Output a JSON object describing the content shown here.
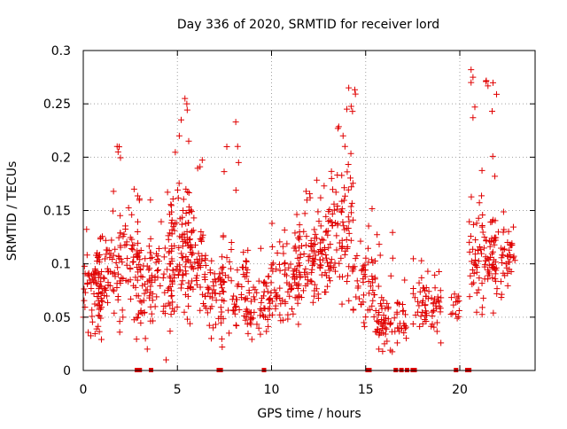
{
  "chart_data": {
    "type": "scatter",
    "title": "Day 336 of 2020, SRMTID for receiver lord",
    "xlabel": "GPS time / hours",
    "ylabel": "SRMTID / TECUs",
    "xlim": [
      0,
      24
    ],
    "ylim": [
      0,
      0.3
    ],
    "x_ticks": [
      0,
      5,
      10,
      15,
      20
    ],
    "x_tick_labels": [
      "0",
      "5",
      "10",
      "15",
      "20"
    ],
    "y_ticks": [
      0,
      0.05,
      0.1,
      0.15,
      0.2,
      0.25,
      0.3
    ],
    "y_tick_labels": [
      "0",
      "0.05",
      "0.1",
      "0.15",
      "0.2",
      "0.25",
      "0.3"
    ],
    "grid": true,
    "marker": "plus",
    "color": "#e00000",
    "clusters": [
      {
        "x0": 0.0,
        "x1": 1.0,
        "base": 0.075,
        "spread": 0.03,
        "n": 60,
        "max": 0.15
      },
      {
        "x0": 0.5,
        "x1": 2.0,
        "base": 0.09,
        "spread": 0.035,
        "n": 70,
        "max": 0.18
      },
      {
        "x0": 1.8,
        "x1": 3.0,
        "base": 0.1,
        "spread": 0.04,
        "n": 60,
        "max": 0.21
      },
      {
        "x0": 2.8,
        "x1": 3.7,
        "base": 0.075,
        "spread": 0.035,
        "n": 45,
        "max": 0.16
      },
      {
        "x0": 3.5,
        "x1": 4.8,
        "base": 0.085,
        "spread": 0.035,
        "n": 60,
        "max": 0.17
      },
      {
        "x0": 4.5,
        "x1": 5.8,
        "base": 0.11,
        "spread": 0.05,
        "n": 90,
        "max": 0.255
      },
      {
        "x0": 5.5,
        "x1": 6.5,
        "base": 0.1,
        "spread": 0.04,
        "n": 55,
        "max": 0.2
      },
      {
        "x0": 6.3,
        "x1": 7.5,
        "base": 0.075,
        "spread": 0.03,
        "n": 50,
        "max": 0.14
      },
      {
        "x0": 7.3,
        "x1": 8.8,
        "base": 0.075,
        "spread": 0.035,
        "n": 60,
        "max": 0.23
      },
      {
        "x0": 8.5,
        "x1": 10.0,
        "base": 0.065,
        "spread": 0.03,
        "n": 60,
        "max": 0.12
      },
      {
        "x0": 9.8,
        "x1": 11.5,
        "base": 0.075,
        "spread": 0.03,
        "n": 75,
        "max": 0.14
      },
      {
        "x0": 11.2,
        "x1": 12.3,
        "base": 0.1,
        "spread": 0.035,
        "n": 55,
        "max": 0.17
      },
      {
        "x0": 12.0,
        "x1": 13.2,
        "base": 0.11,
        "spread": 0.04,
        "n": 65,
        "max": 0.19
      },
      {
        "x0": 13.0,
        "x1": 14.5,
        "base": 0.13,
        "spread": 0.055,
        "n": 85,
        "max": 0.265
      },
      {
        "x0": 14.3,
        "x1": 15.8,
        "base": 0.085,
        "spread": 0.035,
        "n": 55,
        "max": 0.17
      },
      {
        "x0": 15.5,
        "x1": 17.2,
        "base": 0.045,
        "spread": 0.02,
        "n": 75,
        "max": 0.13
      },
      {
        "x0": 17.5,
        "x1": 19.0,
        "base": 0.06,
        "spread": 0.025,
        "n": 65,
        "max": 0.11
      },
      {
        "x0": 19.5,
        "x1": 20.0,
        "base": 0.06,
        "spread": 0.015,
        "n": 14,
        "max": 0.08
      },
      {
        "x0": 20.5,
        "x1": 22.0,
        "base": 0.11,
        "spread": 0.04,
        "n": 95,
        "max": 0.28
      },
      {
        "x0": 21.8,
        "x1": 23.0,
        "base": 0.105,
        "spread": 0.03,
        "n": 50,
        "max": 0.16
      }
    ],
    "peak_points": [
      [
        5.2,
        0.235
      ],
      [
        5.4,
        0.255
      ],
      [
        5.5,
        0.25
      ],
      [
        5.1,
        0.22
      ],
      [
        5.6,
        0.215
      ],
      [
        8.1,
        0.233
      ],
      [
        8.2,
        0.21
      ],
      [
        8.25,
        0.195
      ],
      [
        14.1,
        0.265
      ],
      [
        14.0,
        0.245
      ],
      [
        14.3,
        0.243
      ],
      [
        13.8,
        0.22
      ],
      [
        13.9,
        0.21
      ],
      [
        20.6,
        0.282
      ],
      [
        20.7,
        0.275
      ],
      [
        20.6,
        0.27
      ],
      [
        20.8,
        0.247
      ],
      [
        20.7,
        0.237
      ],
      [
        1.8,
        0.21
      ],
      [
        1.85,
        0.205
      ],
      [
        2.7,
        0.17
      ],
      [
        4.4,
        0.01
      ],
      [
        3.4,
        0.02
      ],
      [
        3.3,
        0.03
      ],
      [
        6.8,
        0.03
      ],
      [
        6.9,
        0.04
      ],
      [
        15.7,
        0.02
      ],
      [
        15.9,
        0.018
      ],
      [
        16.0,
        0.025
      ]
    ],
    "zero_markers_x": [
      2.85,
      3.0,
      3.6,
      7.2,
      7.3,
      9.6,
      15.1,
      15.2,
      16.6,
      16.9,
      17.2,
      17.5,
      17.6,
      19.8,
      20.4,
      20.5
    ]
  }
}
